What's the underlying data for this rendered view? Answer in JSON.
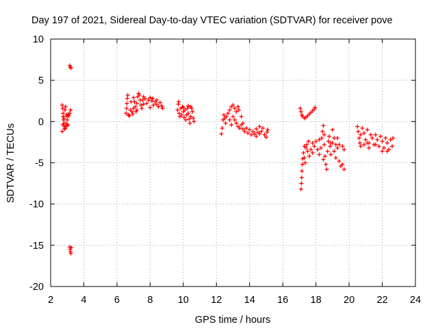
{
  "chart_data": {
    "type": "scatter",
    "title": "Day 197 of 2021, Sidereal Day-to-day VTEC variation (SDTVAR) for receiver pove",
    "xlabel": "GPS time / hours",
    "ylabel": "SDTVAR / TECUs",
    "xlim": [
      2,
      24
    ],
    "ylim": [
      -20,
      10
    ],
    "xticks": [
      2,
      4,
      6,
      8,
      10,
      12,
      14,
      16,
      18,
      20,
      22,
      24
    ],
    "yticks": [
      -20,
      -15,
      -10,
      -5,
      0,
      5,
      10
    ],
    "grid": true,
    "marker": "plus",
    "color": "#ff0000",
    "series": [
      {
        "name": "SDTVAR",
        "points": [
          [
            2.7,
            2.0
          ],
          [
            2.72,
            1.6
          ],
          [
            2.75,
            1.0
          ],
          [
            2.76,
            0.6
          ],
          [
            2.78,
            0.2
          ],
          [
            2.8,
            -0.2
          ],
          [
            2.82,
            -0.6
          ],
          [
            2.84,
            -0.9
          ],
          [
            2.7,
            -1.2
          ],
          [
            2.74,
            -0.4
          ],
          [
            2.8,
            0.4
          ],
          [
            2.86,
            1.4
          ],
          [
            2.9,
            1.8
          ],
          [
            2.95,
            0.8
          ],
          [
            3.0,
            0.2
          ],
          [
            3.05,
            -0.4
          ],
          [
            3.0,
            0.6
          ],
          [
            2.88,
            -0.8
          ],
          [
            2.92,
            -0.2
          ],
          [
            3.1,
            0.7
          ],
          [
            3.15,
            1.0
          ],
          [
            3.2,
            1.4
          ],
          [
            3.05,
            0.9
          ],
          [
            2.98,
            -0.5
          ],
          [
            3.15,
            6.8
          ],
          [
            3.18,
            6.6
          ],
          [
            3.22,
            6.5
          ],
          [
            3.15,
            -15.2
          ],
          [
            3.17,
            -15.5
          ],
          [
            3.2,
            -15.8
          ],
          [
            3.22,
            -16.0
          ],
          [
            3.25,
            -15.3
          ],
          [
            6.55,
            1.0
          ],
          [
            6.58,
            1.6
          ],
          [
            6.6,
            2.2
          ],
          [
            6.62,
            2.8
          ],
          [
            6.65,
            3.2
          ],
          [
            6.7,
            0.8
          ],
          [
            6.75,
            0.7
          ],
          [
            6.8,
            1.4
          ],
          [
            6.85,
            2.4
          ],
          [
            6.9,
            1.2
          ],
          [
            6.95,
            0.9
          ],
          [
            7.0,
            1.6
          ],
          [
            7.05,
            2.4
          ],
          [
            7.1,
            1.8
          ],
          [
            7.15,
            1.2
          ],
          [
            7.2,
            2.2
          ],
          [
            7.25,
            3.0
          ],
          [
            7.3,
            3.4
          ],
          [
            7.35,
            3.2
          ],
          [
            7.4,
            2.6
          ],
          [
            7.45,
            2.0
          ],
          [
            7.5,
            1.6
          ],
          [
            7.55,
            2.6
          ],
          [
            7.6,
            3.0
          ],
          [
            7.7,
            2.8
          ],
          [
            7.8,
            2.2
          ],
          [
            7.9,
            2.6
          ],
          [
            8.0,
            2.9
          ],
          [
            8.1,
            2.5
          ],
          [
            8.2,
            2.0
          ],
          [
            8.3,
            2.4
          ],
          [
            8.4,
            2.1
          ],
          [
            8.5,
            1.8
          ],
          [
            8.6,
            2.3
          ],
          [
            8.7,
            1.9
          ],
          [
            8.75,
            1.6
          ],
          [
            7.0,
            2.9
          ],
          [
            7.2,
            1.4
          ],
          [
            7.6,
            2.1
          ],
          [
            8.0,
            1.7
          ],
          [
            8.4,
            2.6
          ],
          [
            8.15,
            2.8
          ],
          [
            9.65,
            1.4
          ],
          [
            9.7,
            2.1
          ],
          [
            9.72,
            2.4
          ],
          [
            9.75,
            1.0
          ],
          [
            9.8,
            0.6
          ],
          [
            9.85,
            1.6
          ],
          [
            9.9,
            0.8
          ],
          [
            9.95,
            1.8
          ],
          [
            10.0,
            1.2
          ],
          [
            10.05,
            0.5
          ],
          [
            10.1,
            1.4
          ],
          [
            10.15,
            0.2
          ],
          [
            10.2,
            0.8
          ],
          [
            10.25,
            1.6
          ],
          [
            10.3,
            1.0
          ],
          [
            10.35,
            0.3
          ],
          [
            10.4,
            -0.2
          ],
          [
            10.45,
            0.6
          ],
          [
            10.5,
            1.6
          ],
          [
            10.55,
            1.2
          ],
          [
            10.6,
            0.4
          ],
          [
            10.65,
            0.0
          ],
          [
            10.3,
            1.9
          ],
          [
            10.0,
            1.7
          ],
          [
            10.45,
            1.8
          ],
          [
            12.3,
            -1.5
          ],
          [
            12.35,
            -0.8
          ],
          [
            12.4,
            0.2
          ],
          [
            12.45,
            0.8
          ],
          [
            12.5,
            0.4
          ],
          [
            12.55,
            -0.2
          ],
          [
            12.6,
            0.6
          ],
          [
            12.7,
            1.0
          ],
          [
            12.8,
            1.4
          ],
          [
            12.9,
            1.8
          ],
          [
            13.0,
            2.0
          ],
          [
            13.1,
            1.6
          ],
          [
            13.2,
            1.2
          ],
          [
            13.3,
            1.8
          ],
          [
            13.35,
            1.4
          ],
          [
            12.8,
            0.2
          ],
          [
            12.9,
            -0.4
          ],
          [
            13.0,
            0.6
          ],
          [
            13.1,
            0.2
          ],
          [
            13.2,
            -0.2
          ],
          [
            13.3,
            -0.6
          ],
          [
            13.4,
            -0.8
          ],
          [
            13.5,
            -0.4
          ],
          [
            13.6,
            -0.9
          ],
          [
            13.7,
            -1.2
          ],
          [
            13.8,
            -0.8
          ],
          [
            13.9,
            -1.4
          ],
          [
            14.0,
            -1.0
          ],
          [
            14.1,
            -1.6
          ],
          [
            14.2,
            -1.2
          ],
          [
            14.3,
            -1.5
          ],
          [
            14.4,
            -0.9
          ],
          [
            14.5,
            -1.3
          ],
          [
            14.6,
            -1.5
          ],
          [
            14.7,
            -1.2
          ],
          [
            14.8,
            -0.8
          ],
          [
            14.9,
            -1.6
          ],
          [
            15.0,
            -1.9
          ],
          [
            15.05,
            -1.3
          ],
          [
            15.1,
            -1.0
          ],
          [
            13.5,
            0.6
          ],
          [
            13.6,
            -0.2
          ],
          [
            14.4,
            -1.8
          ],
          [
            14.6,
            -0.6
          ],
          [
            17.05,
            1.6
          ],
          [
            17.1,
            1.2
          ],
          [
            17.15,
            0.8
          ],
          [
            17.2,
            0.6
          ],
          [
            17.3,
            0.4
          ],
          [
            17.4,
            0.5
          ],
          [
            17.5,
            0.7
          ],
          [
            17.6,
            0.9
          ],
          [
            17.7,
            1.1
          ],
          [
            17.8,
            1.3
          ],
          [
            17.9,
            1.5
          ],
          [
            17.95,
            1.7
          ],
          [
            17.1,
            -8.2
          ],
          [
            17.12,
            -7.5
          ],
          [
            17.14,
            -6.8
          ],
          [
            17.16,
            -6.0
          ],
          [
            17.18,
            -5.2
          ],
          [
            17.2,
            -4.5
          ],
          [
            17.25,
            -3.8
          ],
          [
            17.3,
            -4.4
          ],
          [
            17.35,
            -5.0
          ],
          [
            17.4,
            -3.2
          ],
          [
            17.45,
            -2.8
          ],
          [
            17.5,
            -3.6
          ],
          [
            17.6,
            -4.2
          ],
          [
            17.7,
            -3.4
          ],
          [
            17.8,
            -2.6
          ],
          [
            17.9,
            -3.0
          ],
          [
            18.0,
            -2.4
          ],
          [
            18.1,
            -3.4
          ],
          [
            18.2,
            -4.0
          ],
          [
            18.3,
            -3.2
          ],
          [
            18.35,
            -2.0
          ],
          [
            18.4,
            -1.2
          ],
          [
            18.45,
            -0.5
          ],
          [
            18.5,
            -1.6
          ],
          [
            18.55,
            -4.2
          ],
          [
            18.6,
            -5.2
          ],
          [
            18.65,
            -5.8
          ],
          [
            18.7,
            -3.6
          ],
          [
            18.75,
            -2.4
          ],
          [
            18.8,
            -1.8
          ],
          [
            18.85,
            -3.0
          ],
          [
            18.9,
            -4.0
          ],
          [
            19.0,
            -2.6
          ],
          [
            19.1,
            -3.6
          ],
          [
            19.2,
            -4.4
          ],
          [
            19.3,
            -3.2
          ],
          [
            19.4,
            -4.8
          ],
          [
            19.5,
            -5.4
          ],
          [
            19.6,
            -5.2
          ],
          [
            19.7,
            -5.8
          ],
          [
            19.0,
            -1.0
          ],
          [
            19.1,
            -2.0
          ],
          [
            19.2,
            -2.8
          ],
          [
            19.4,
            -2.8
          ],
          [
            19.6,
            -3.0
          ],
          [
            19.7,
            -3.4
          ],
          [
            17.3,
            -3.0
          ],
          [
            17.8,
            -3.8
          ],
          [
            18.2,
            -2.2
          ],
          [
            18.5,
            -2.8
          ],
          [
            18.9,
            -2.6
          ],
          [
            19.3,
            -2.0
          ],
          [
            18.45,
            -4.6
          ],
          [
            17.55,
            -2.4
          ],
          [
            20.5,
            -0.6
          ],
          [
            20.55,
            -1.2
          ],
          [
            20.6,
            -2.0
          ],
          [
            20.65,
            -2.6
          ],
          [
            20.7,
            -1.6
          ],
          [
            20.8,
            -0.8
          ],
          [
            20.9,
            -1.4
          ],
          [
            21.0,
            -2.2
          ],
          [
            21.1,
            -1.0
          ],
          [
            21.2,
            -2.6
          ],
          [
            21.3,
            -1.6
          ],
          [
            21.4,
            -2.0
          ],
          [
            21.5,
            -2.8
          ],
          [
            21.6,
            -1.6
          ],
          [
            21.7,
            -2.2
          ],
          [
            21.8,
            -3.0
          ],
          [
            21.9,
            -1.8
          ],
          [
            22.0,
            -2.4
          ],
          [
            22.1,
            -3.2
          ],
          [
            22.2,
            -2.0
          ],
          [
            22.3,
            -2.6
          ],
          [
            22.4,
            -3.4
          ],
          [
            22.5,
            -2.2
          ],
          [
            22.6,
            -3.0
          ],
          [
            22.65,
            -2.0
          ],
          [
            20.9,
            -2.8
          ],
          [
            21.2,
            -3.2
          ],
          [
            21.6,
            -2.8
          ],
          [
            22.0,
            -3.6
          ],
          [
            22.3,
            -3.6
          ],
          [
            20.7,
            -3.0
          ],
          [
            21.1,
            -2.6
          ]
        ]
      }
    ]
  }
}
